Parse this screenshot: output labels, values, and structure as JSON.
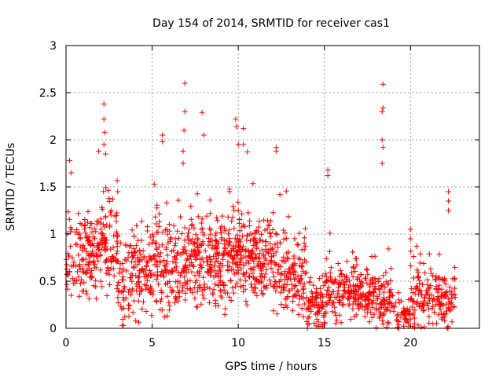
{
  "chart_data": {
    "type": "scatter",
    "title": "Day 154 of 2014, SRMTID for receiver cas1",
    "xlabel": "GPS time / hours",
    "ylabel": "SRMTID / TECUs",
    "xlim": [
      0,
      24
    ],
    "ylim": [
      0,
      3
    ],
    "x_ticks": [
      0,
      5,
      10,
      15,
      20
    ],
    "x_tick_labels": [
      "0",
      "5",
      "10",
      "15",
      "20"
    ],
    "y_ticks": [
      0,
      0.5,
      1,
      1.5,
      2,
      2.5,
      3
    ],
    "y_tick_labels": [
      "0",
      "0.5",
      "1",
      "1.5",
      "2",
      "2.5",
      "3"
    ],
    "grid": true,
    "marker": "+",
    "color": "#ff0000",
    "density_profile": [
      {
        "x": 0.0,
        "center": 0.75,
        "spread": 0.35,
        "count": 60
      },
      {
        "x": 1.0,
        "center": 0.75,
        "spread": 0.35,
        "count": 90
      },
      {
        "x": 2.0,
        "center": 0.85,
        "spread": 0.4,
        "count": 90
      },
      {
        "x": 3.0,
        "center": 0.5,
        "spread": 0.4,
        "count": 70
      },
      {
        "x": 4.0,
        "center": 0.6,
        "spread": 0.4,
        "count": 80
      },
      {
        "x": 5.0,
        "center": 0.7,
        "spread": 0.4,
        "count": 85
      },
      {
        "x": 6.0,
        "center": 0.65,
        "spread": 0.4,
        "count": 80
      },
      {
        "x": 7.0,
        "center": 0.75,
        "spread": 0.4,
        "count": 95
      },
      {
        "x": 8.0,
        "center": 0.7,
        "spread": 0.4,
        "count": 95
      },
      {
        "x": 9.0,
        "center": 0.75,
        "spread": 0.4,
        "count": 100
      },
      {
        "x": 10.0,
        "center": 0.75,
        "spread": 0.4,
        "count": 100
      },
      {
        "x": 11.0,
        "center": 0.7,
        "spread": 0.35,
        "count": 90
      },
      {
        "x": 12.0,
        "center": 0.6,
        "spread": 0.35,
        "count": 80
      },
      {
        "x": 13.0,
        "center": 0.5,
        "spread": 0.35,
        "count": 75
      },
      {
        "x": 14.0,
        "center": 0.25,
        "spread": 0.2,
        "count": 75
      },
      {
        "x": 15.0,
        "center": 0.35,
        "spread": 0.25,
        "count": 70
      },
      {
        "x": 16.0,
        "center": 0.4,
        "spread": 0.25,
        "count": 80
      },
      {
        "x": 17.0,
        "center": 0.35,
        "spread": 0.2,
        "count": 85
      },
      {
        "x": 18.0,
        "center": 0.3,
        "spread": 0.25,
        "count": 70
      },
      {
        "x": 19.0,
        "center": 0.15,
        "spread": 0.15,
        "count": 50
      },
      {
        "x": 20.0,
        "center": 0.35,
        "spread": 0.25,
        "count": 70
      },
      {
        "x": 21.0,
        "center": 0.35,
        "spread": 0.25,
        "count": 70
      },
      {
        "x": 22.0,
        "center": 0.3,
        "spread": 0.25,
        "count": 60
      }
    ],
    "notable_points": [
      {
        "x": 2.2,
        "y": 2.38
      },
      {
        "x": 2.2,
        "y": 2.22
      },
      {
        "x": 2.25,
        "y": 2.08
      },
      {
        "x": 2.2,
        "y": 1.95
      },
      {
        "x": 2.3,
        "y": 1.85
      },
      {
        "x": 5.6,
        "y": 2.05
      },
      {
        "x": 5.6,
        "y": 1.98
      },
      {
        "x": 6.9,
        "y": 2.6
      },
      {
        "x": 6.9,
        "y": 2.3
      },
      {
        "x": 6.85,
        "y": 2.1
      },
      {
        "x": 6.8,
        "y": 1.88
      },
      {
        "x": 6.8,
        "y": 1.75
      },
      {
        "x": 7.9,
        "y": 2.29
      },
      {
        "x": 8.0,
        "y": 2.05
      },
      {
        "x": 9.85,
        "y": 2.22
      },
      {
        "x": 9.9,
        "y": 2.14
      },
      {
        "x": 10.3,
        "y": 2.12
      },
      {
        "x": 10.0,
        "y": 1.95
      },
      {
        "x": 10.3,
        "y": 1.95
      },
      {
        "x": 12.2,
        "y": 1.92
      },
      {
        "x": 12.2,
        "y": 1.88
      },
      {
        "x": 15.2,
        "y": 1.68
      },
      {
        "x": 15.2,
        "y": 1.62
      },
      {
        "x": 18.4,
        "y": 2.59
      },
      {
        "x": 18.4,
        "y": 2.34
      },
      {
        "x": 18.35,
        "y": 2.3
      },
      {
        "x": 18.35,
        "y": 2.0
      },
      {
        "x": 18.4,
        "y": 1.92
      },
      {
        "x": 18.35,
        "y": 1.75
      },
      {
        "x": 20.0,
        "y": 1.05
      },
      {
        "x": 20.0,
        "y": 0.95
      },
      {
        "x": 22.2,
        "y": 1.45
      },
      {
        "x": 22.2,
        "y": 1.35
      },
      {
        "x": 22.2,
        "y": 1.25
      },
      {
        "x": 0.2,
        "y": 1.78
      },
      {
        "x": 0.3,
        "y": 1.65
      },
      {
        "x": 1.9,
        "y": 1.88
      },
      {
        "x": 3.0,
        "y": 1.45
      }
    ],
    "x_max_data": 22.6,
    "seed": 154
  }
}
